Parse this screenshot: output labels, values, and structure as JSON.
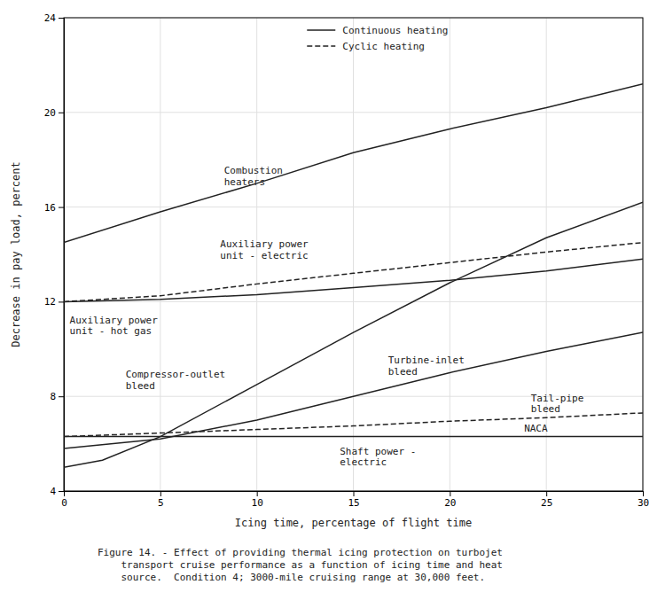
{
  "chart_data": {
    "type": "line",
    "title": "Figure 14. - Effect of providing thermal icing protection on turbojet\n    transport cruise performance as a function of icing time and heat\n    source.  Condition 4; 3000-mile cruising range at 30,000 feet.",
    "xlabel": "Icing time, percentage of flight time",
    "ylabel": "Decrease in pay load, percent",
    "xlim": [
      0,
      30
    ],
    "ylim": [
      4,
      24
    ],
    "xticks": [
      0,
      5,
      10,
      15,
      20,
      25,
      30
    ],
    "yticks": [
      4,
      8,
      12,
      16,
      20,
      24
    ],
    "grid": true,
    "color": "#222222",
    "legend": "upper center",
    "legend_entries": [
      {
        "label": "Continuous heating",
        "line_style": "solid"
      },
      {
        "label": "Cyclic heating",
        "line_style": "dashed"
      }
    ],
    "series": [
      {
        "line_style": "solid",
        "x": [
          0,
          5,
          10,
          15,
          20,
          25,
          30
        ],
        "values": [
          14.5,
          15.8,
          17.0,
          18.3,
          19.3,
          20.2,
          21.2
        ]
      },
      {
        "line_style": "dashed",
        "x": [
          0,
          5,
          10,
          15,
          20,
          25,
          30
        ],
        "values": [
          12.0,
          12.25,
          12.75,
          13.2,
          13.65,
          14.1,
          14.5
        ]
      },
      {
        "line_style": "solid",
        "x": [
          0,
          5,
          10,
          15,
          20,
          25,
          30
        ],
        "values": [
          12.0,
          12.1,
          12.3,
          12.6,
          12.9,
          13.3,
          13.8
        ]
      },
      {
        "line_style": "solid",
        "x": [
          0,
          2,
          5,
          10,
          15,
          20,
          25,
          30
        ],
        "values": [
          5.0,
          5.3,
          6.3,
          8.5,
          10.7,
          12.8,
          14.7,
          16.2
        ]
      },
      {
        "line_style": "solid",
        "x": [
          0,
          5,
          10,
          15,
          20,
          25,
          30
        ],
        "values": [
          5.8,
          6.2,
          7.0,
          8.0,
          9.0,
          9.9,
          10.7
        ]
      },
      {
        "line_style": "dashed",
        "x": [
          0,
          5,
          10,
          15,
          20,
          25,
          30
        ],
        "values": [
          6.3,
          6.45,
          6.6,
          6.75,
          6.95,
          7.1,
          7.3
        ]
      },
      {
        "line_style": "solid",
        "x": [
          0,
          30
        ],
        "values": [
          6.3,
          6.3
        ]
      }
    ],
    "annotations": [
      {
        "text": "Combustion\nheaters",
        "x": 8.3,
        "y": 17.3
      },
      {
        "text": "Auxiliary power\nunit - electric",
        "x": 8.1,
        "y": 14.2
      },
      {
        "text": "Auxiliary power\nunit - hot gas",
        "x": 0.3,
        "y": 11.0
      },
      {
        "text": "Compressor-outlet\nbleed",
        "x": 3.2,
        "y": 8.7
      },
      {
        "text": "Turbine-inlet\nbleed",
        "x": 16.8,
        "y": 9.3
      },
      {
        "text": "Tail-pipe\nbleed",
        "x": 24.2,
        "y": 7.7
      },
      {
        "text": "Shaft power -\nelectric",
        "x": 14.3,
        "y": 5.45
      },
      {
        "text": "NACA",
        "x": 23.85,
        "y": 6.644
      }
    ]
  }
}
